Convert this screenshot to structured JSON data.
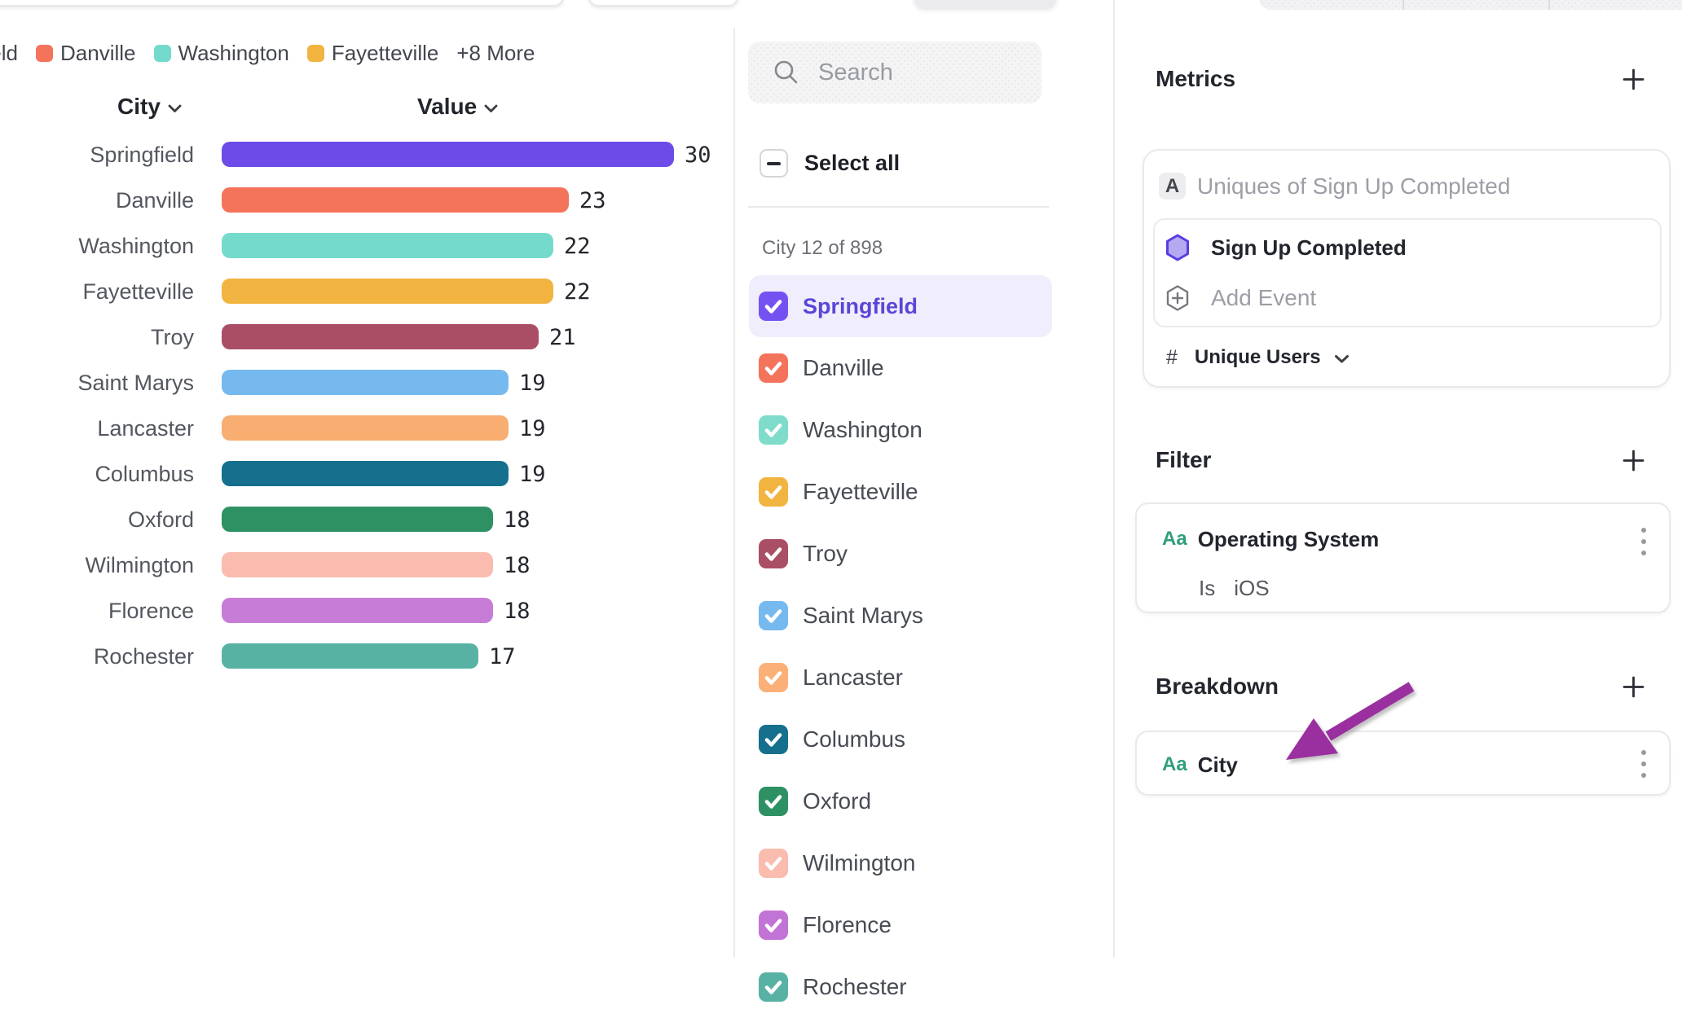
{
  "legend": {
    "items": [
      {
        "label": "Springfield",
        "color": "#6C4BE8"
      },
      {
        "label": "Danville",
        "color": "#F4735B"
      },
      {
        "label": "Washington",
        "color": "#74DACC"
      },
      {
        "label": "Fayetteville",
        "color": "#F2B440"
      }
    ],
    "more_label": "+8 More"
  },
  "chart_data": {
    "type": "bar",
    "orientation": "horizontal",
    "title": "",
    "xlabel": "Value",
    "ylabel": "City",
    "xlim": [
      0,
      30
    ],
    "sort": "descending",
    "categories": [
      "Springfield",
      "Danville",
      "Washington",
      "Fayetteville",
      "Troy",
      "Saint Marys",
      "Lancaster",
      "Columbus",
      "Oxford",
      "Wilmington",
      "Florence",
      "Rochester"
    ],
    "values": [
      30,
      23,
      22,
      22,
      21,
      19,
      19,
      19,
      18,
      18,
      18,
      17
    ],
    "colors": [
      "#6C4BE8",
      "#F4735B",
      "#74DACC",
      "#F2B440",
      "#AA4E66",
      "#76B9EF",
      "#F9AE71",
      "#156F8D",
      "#2E9164",
      "#F9BCAE",
      "#C77DD6",
      "#58B2A4"
    ]
  },
  "table_header": {
    "city": "City",
    "value": "Value"
  },
  "list_panel": {
    "search_placeholder": "Search",
    "search_value": "",
    "select_all_label": "Select all",
    "group_label": "City 12 of 898",
    "items": [
      {
        "label": "Springfield",
        "color": "#7452F2",
        "selected": true,
        "highlighted": true
      },
      {
        "label": "Danville",
        "color": "#F4735B",
        "selected": true,
        "highlighted": false
      },
      {
        "label": "Washington",
        "color": "#7FDCCB",
        "selected": true,
        "highlighted": false
      },
      {
        "label": "Fayetteville",
        "color": "#F2B440",
        "selected": true,
        "highlighted": false
      },
      {
        "label": "Troy",
        "color": "#AA4E66",
        "selected": true,
        "highlighted": false
      },
      {
        "label": "Saint Marys",
        "color": "#76B9EF",
        "selected": true,
        "highlighted": false
      },
      {
        "label": "Lancaster",
        "color": "#FAB077",
        "selected": true,
        "highlighted": false
      },
      {
        "label": "Columbus",
        "color": "#156F8D",
        "selected": true,
        "highlighted": false
      },
      {
        "label": "Oxford",
        "color": "#2E9164",
        "selected": true,
        "highlighted": false
      },
      {
        "label": "Wilmington",
        "color": "#F9BCAE",
        "selected": true,
        "highlighted": false
      },
      {
        "label": "Florence",
        "color": "#C273D6",
        "selected": true,
        "highlighted": false
      },
      {
        "label": "Rochester",
        "color": "#58B2A4",
        "selected": true,
        "highlighted": false
      }
    ]
  },
  "config_panel": {
    "metrics": {
      "title": "Metrics",
      "badge": "A",
      "summary": "Uniques of Sign Up Completed",
      "event_name": "Sign Up Completed",
      "add_event_label": "Add Event",
      "measure_prefix": "#",
      "measure_label": "Unique Users"
    },
    "filter": {
      "title": "Filter",
      "property_type": "Aa",
      "property_name": "Operating System",
      "operator": "Is",
      "value": "iOS"
    },
    "breakdown": {
      "title": "Breakdown",
      "property_type": "Aa",
      "property_name": "City"
    }
  },
  "colors": {
    "event_hex_fill": "#B5A9F2",
    "event_hex_stroke": "#5B3CE1",
    "arrow": "#9A2F9F",
    "accent_green": "#2F9E7D"
  }
}
